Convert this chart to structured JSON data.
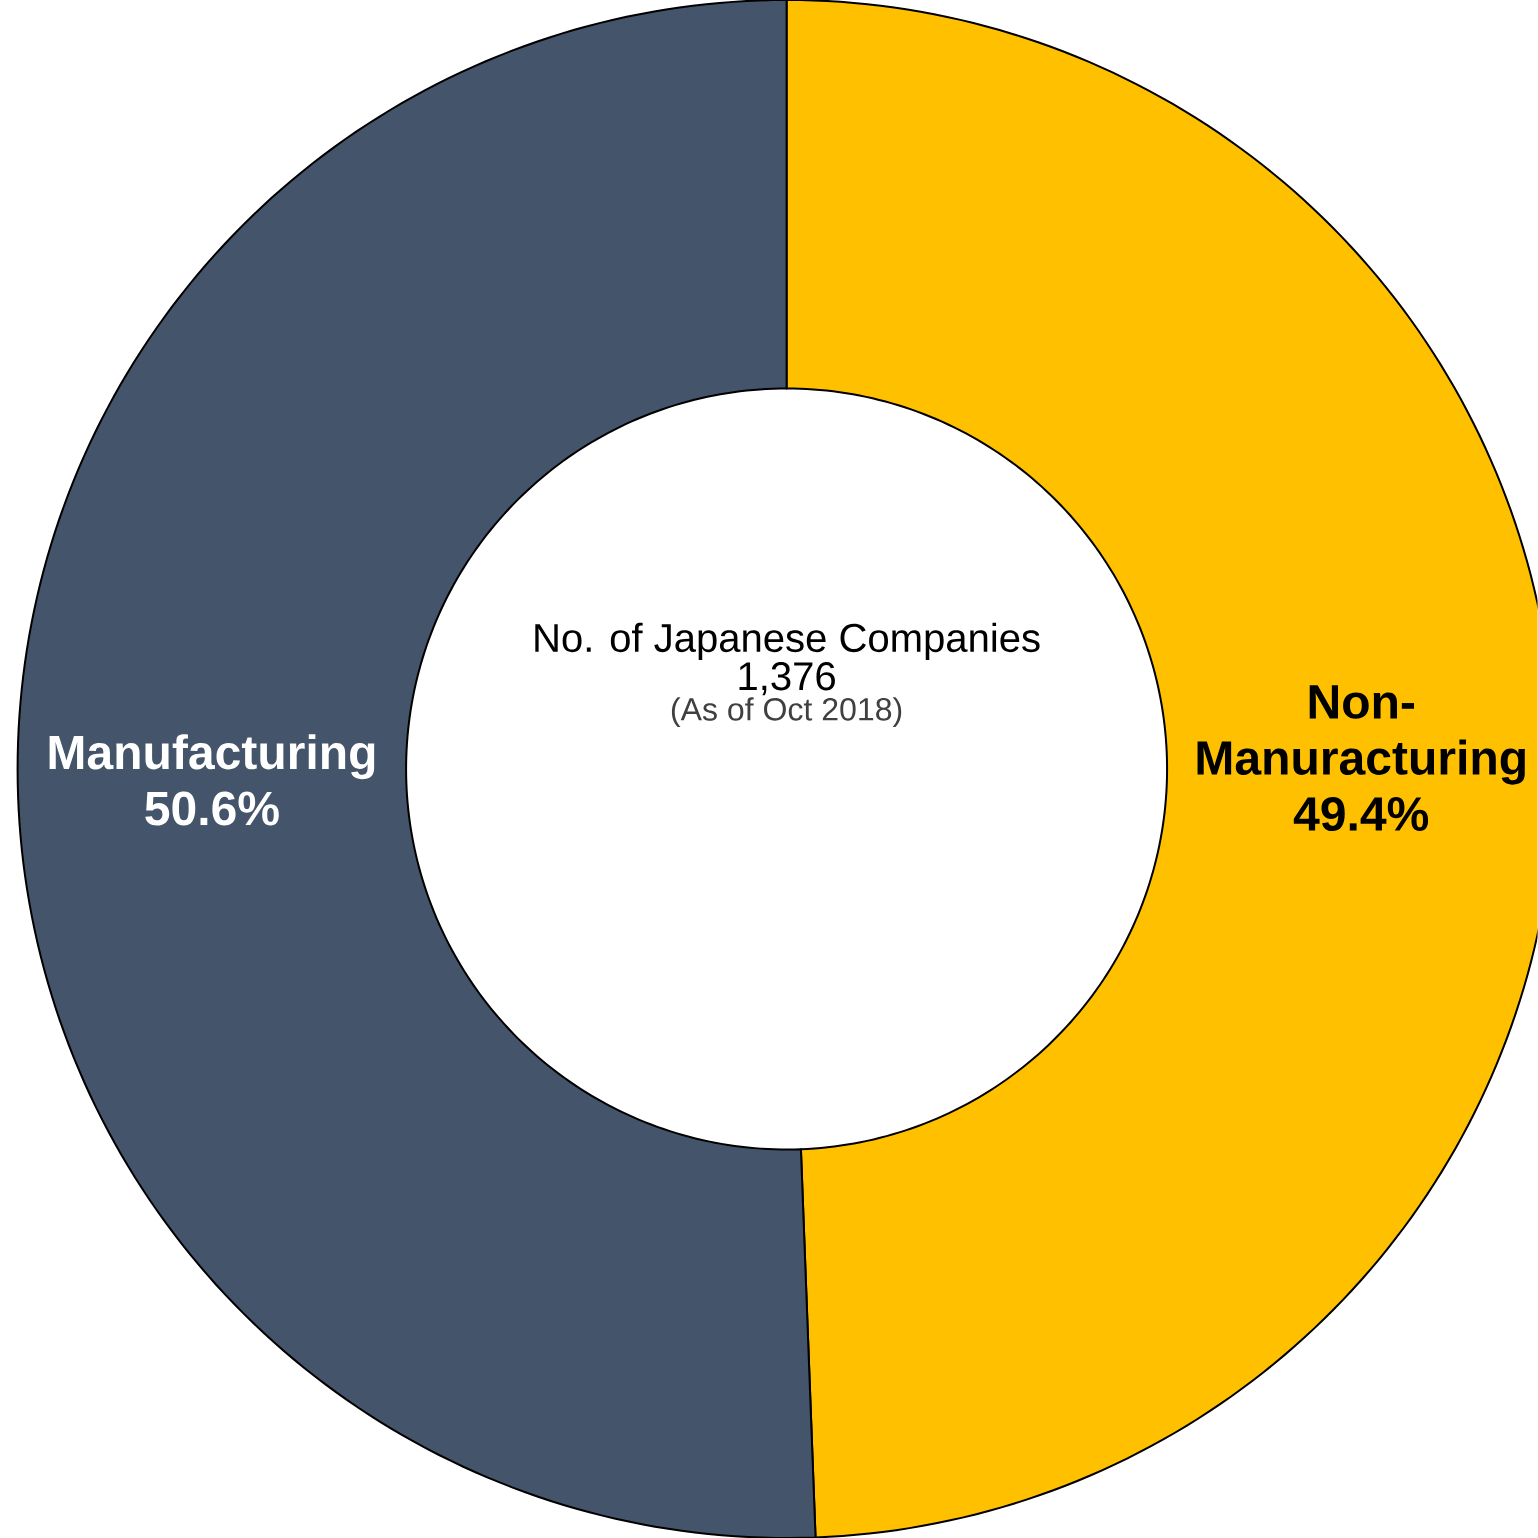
{
  "chart_data": {
    "type": "donut",
    "categories": [
      "Non-Manuracturing",
      "Manufacturing"
    ],
    "values": [
      49.4,
      50.6
    ],
    "value_labels": [
      "49.4%",
      "50.6%"
    ],
    "colors": [
      "#ffc000",
      "#44546a"
    ],
    "annotations": [
      "No. of Japanese Companies",
      "1,376",
      "(As of Oct 2018)"
    ]
  }
}
